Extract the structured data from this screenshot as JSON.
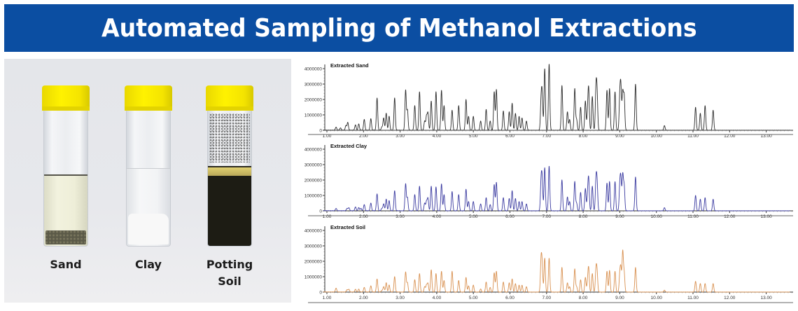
{
  "banner": {
    "title": "Automated Sampling of Methanol Extractions",
    "background": "#0b4ea2"
  },
  "photo": {
    "vials": [
      {
        "label_lines": [
          "Sand"
        ],
        "cap_color": "#fff200",
        "sediment_color": "#5b5a48",
        "liquid_color": "#eeeed8"
      },
      {
        "label_lines": [
          "Clay"
        ],
        "cap_color": "#fff200",
        "sediment_color": "#f6f6f6",
        "liquid_color": "#eef0f2"
      },
      {
        "label_lines": [
          "Potting",
          "Soil"
        ],
        "cap_color": "#fff200",
        "sediment_color": "#1d1c14",
        "liquid_color": "#d8c878"
      }
    ]
  },
  "chart_data": [
    {
      "type": "line",
      "title": "Extracted Sand",
      "color": "#2b2b2b",
      "xlabel": "",
      "ylabel": "",
      "xlim": [
        0.55,
        13.7
      ],
      "ylim": [
        0,
        4000000
      ],
      "x_ticks": [
        "1.00",
        "2.00",
        "3.00",
        "4.00",
        "5.00",
        "6.00",
        "7.00",
        "8.00",
        "9.00",
        "10.00",
        "11.00",
        "12.00",
        "13.00"
      ],
      "y_ticks": [
        "0",
        "1000000",
        "2000000",
        "3000000",
        "4000000"
      ],
      "peaks": [
        [
          1.25,
          200000
        ],
        [
          1.37,
          150000
        ],
        [
          1.52,
          300000
        ],
        [
          1.57,
          500000
        ],
        [
          1.78,
          350000
        ],
        [
          1.87,
          400000
        ],
        [
          2.02,
          700000
        ],
        [
          2.2,
          750000
        ],
        [
          2.37,
          2100000
        ],
        [
          2.5,
          200000
        ],
        [
          2.55,
          800000
        ],
        [
          2.62,
          1100000
        ],
        [
          2.7,
          900000
        ],
        [
          2.85,
          2100000
        ],
        [
          3.15,
          2600000
        ],
        [
          3.2,
          1300000
        ],
        [
          3.4,
          1600000
        ],
        [
          3.53,
          2500000
        ],
        [
          3.67,
          600000
        ],
        [
          3.72,
          900000
        ],
        [
          3.76,
          1100000
        ],
        [
          3.85,
          1900000
        ],
        [
          3.98,
          2500000
        ],
        [
          4.13,
          2600000
        ],
        [
          4.2,
          1600000
        ],
        [
          4.42,
          1300000
        ],
        [
          4.6,
          1600000
        ],
        [
          4.8,
          2000000
        ],
        [
          4.87,
          900000
        ],
        [
          5.0,
          900000
        ],
        [
          5.2,
          600000
        ],
        [
          5.35,
          1350000
        ],
        [
          5.46,
          600000
        ],
        [
          5.57,
          2500000
        ],
        [
          5.63,
          2650000
        ],
        [
          5.82,
          1250000
        ],
        [
          5.98,
          1200000
        ],
        [
          6.06,
          1750000
        ],
        [
          6.15,
          1100000
        ],
        [
          6.25,
          900000
        ],
        [
          6.33,
          800000
        ],
        [
          6.45,
          600000
        ],
        [
          6.85,
          1800000
        ],
        [
          6.88,
          2200000
        ],
        [
          6.95,
          4000000
        ],
        [
          7.07,
          4300000
        ],
        [
          7.42,
          2900000
        ],
        [
          7.57,
          1200000
        ],
        [
          7.63,
          700000
        ],
        [
          7.77,
          2700000
        ],
        [
          7.82,
          700000
        ],
        [
          7.93,
          1500000
        ],
        [
          8.06,
          1900000
        ],
        [
          8.12,
          1000000
        ],
        [
          8.15,
          2600000
        ],
        [
          8.25,
          2200000
        ],
        [
          8.35,
          2600000
        ],
        [
          8.38,
          2200000
        ],
        [
          8.65,
          2600000
        ],
        [
          8.72,
          2700000
        ],
        [
          8.87,
          2500000
        ],
        [
          9.0,
          2000000
        ],
        [
          9.03,
          2600000
        ],
        [
          9.08,
          2400000
        ],
        [
          9.12,
          2200000
        ],
        [
          9.43,
          3000000
        ],
        [
          10.22,
          300000
        ],
        [
          11.07,
          1500000
        ],
        [
          11.2,
          1100000
        ],
        [
          11.33,
          1600000
        ],
        [
          11.55,
          1300000
        ]
      ]
    },
    {
      "type": "line",
      "title": "Extracted Clay",
      "color": "#3a3aa0",
      "xlabel": "",
      "ylabel": "",
      "xlim": [
        0.55,
        13.7
      ],
      "ylim": [
        0,
        4000000
      ],
      "x_ticks": [
        "1.00",
        "2.00",
        "3.00",
        "4.00",
        "5.00",
        "6.00",
        "7.00",
        "8.00",
        "9.00",
        "10.00",
        "11.00",
        "12.00",
        "13.00"
      ],
      "y_ticks": [
        "0",
        "1000000",
        "2000000",
        "3000000",
        "4000000"
      ],
      "peaks": [
        [
          1.25,
          150000
        ],
        [
          1.55,
          150000
        ],
        [
          1.6,
          200000
        ],
        [
          1.78,
          250000
        ],
        [
          1.87,
          200000
        ],
        [
          1.93,
          150000
        ],
        [
          2.02,
          400000
        ],
        [
          2.2,
          500000
        ],
        [
          2.37,
          1100000
        ],
        [
          2.5,
          150000
        ],
        [
          2.55,
          450000
        ],
        [
          2.62,
          750000
        ],
        [
          2.7,
          650000
        ],
        [
          2.85,
          1300000
        ],
        [
          3.15,
          1750000
        ],
        [
          3.2,
          850000
        ],
        [
          3.4,
          1050000
        ],
        [
          3.53,
          1600000
        ],
        [
          3.67,
          500000
        ],
        [
          3.72,
          600000
        ],
        [
          3.76,
          800000
        ],
        [
          3.85,
          1600000
        ],
        [
          3.98,
          1550000
        ],
        [
          4.13,
          1750000
        ],
        [
          4.2,
          1050000
        ],
        [
          4.42,
          1250000
        ],
        [
          4.6,
          1050000
        ],
        [
          4.8,
          1400000
        ],
        [
          4.87,
          600000
        ],
        [
          5.0,
          600000
        ],
        [
          5.2,
          450000
        ],
        [
          5.35,
          850000
        ],
        [
          5.46,
          400000
        ],
        [
          5.57,
          1700000
        ],
        [
          5.63,
          1850000
        ],
        [
          5.82,
          850000
        ],
        [
          5.98,
          800000
        ],
        [
          6.06,
          1300000
        ],
        [
          6.15,
          800000
        ],
        [
          6.25,
          600000
        ],
        [
          6.33,
          600000
        ],
        [
          6.45,
          450000
        ],
        [
          6.85,
          1800000
        ],
        [
          6.88,
          1900000
        ],
        [
          6.95,
          2800000
        ],
        [
          7.07,
          2900000
        ],
        [
          7.42,
          2000000
        ],
        [
          7.57,
          900000
        ],
        [
          7.63,
          600000
        ],
        [
          7.77,
          1900000
        ],
        [
          7.82,
          500000
        ],
        [
          7.93,
          1200000
        ],
        [
          8.06,
          1450000
        ],
        [
          8.12,
          900000
        ],
        [
          8.15,
          2000000
        ],
        [
          8.25,
          1600000
        ],
        [
          8.35,
          1900000
        ],
        [
          8.38,
          1700000
        ],
        [
          8.65,
          1800000
        ],
        [
          8.72,
          1900000
        ],
        [
          8.87,
          1900000
        ],
        [
          9.0,
          1500000
        ],
        [
          9.03,
          1900000
        ],
        [
          9.08,
          2300000
        ],
        [
          9.12,
          1600000
        ],
        [
          9.43,
          2200000
        ],
        [
          10.22,
          200000
        ],
        [
          11.07,
          1000000
        ],
        [
          11.2,
          750000
        ],
        [
          11.33,
          850000
        ],
        [
          11.55,
          750000
        ]
      ]
    },
    {
      "type": "line",
      "title": "Extracted Soil",
      "color": "#d89050",
      "xlabel": "",
      "ylabel": "",
      "xlim": [
        0.55,
        13.7
      ],
      "ylim": [
        0,
        4000000
      ],
      "x_ticks": [
        "1.00",
        "2.00",
        "3.00",
        "4.00",
        "5.00",
        "6.00",
        "7.00",
        "8.00",
        "9.00",
        "10.00",
        "11.00",
        "12.00",
        "13.00"
      ],
      "y_ticks": [
        "0",
        "1000000",
        "2000000",
        "3000000",
        "4000000"
      ],
      "peaks": [
        [
          1.25,
          250000
        ],
        [
          1.55,
          150000
        ],
        [
          1.6,
          180000
        ],
        [
          1.78,
          180000
        ],
        [
          1.87,
          180000
        ],
        [
          2.02,
          300000
        ],
        [
          2.2,
          400000
        ],
        [
          2.37,
          850000
        ],
        [
          2.5,
          100000
        ],
        [
          2.55,
          350000
        ],
        [
          2.62,
          600000
        ],
        [
          2.7,
          450000
        ],
        [
          2.85,
          1000000
        ],
        [
          3.15,
          1300000
        ],
        [
          3.2,
          600000
        ],
        [
          3.4,
          800000
        ],
        [
          3.53,
          1200000
        ],
        [
          3.67,
          350000
        ],
        [
          3.72,
          450000
        ],
        [
          3.76,
          550000
        ],
        [
          3.85,
          1450000
        ],
        [
          3.98,
          1200000
        ],
        [
          4.13,
          1350000
        ],
        [
          4.2,
          750000
        ],
        [
          4.42,
          1350000
        ],
        [
          4.6,
          750000
        ],
        [
          4.8,
          950000
        ],
        [
          4.87,
          400000
        ],
        [
          5.0,
          450000
        ],
        [
          5.2,
          200000
        ],
        [
          5.35,
          650000
        ],
        [
          5.46,
          300000
        ],
        [
          5.57,
          1250000
        ],
        [
          5.63,
          1350000
        ],
        [
          5.82,
          650000
        ],
        [
          5.98,
          600000
        ],
        [
          6.06,
          850000
        ],
        [
          6.15,
          550000
        ],
        [
          6.25,
          450000
        ],
        [
          6.33,
          450000
        ],
        [
          6.45,
          350000
        ],
        [
          6.85,
          2000000
        ],
        [
          6.88,
          1600000
        ],
        [
          6.95,
          2200000
        ],
        [
          7.07,
          2200000
        ],
        [
          7.42,
          1600000
        ],
        [
          7.57,
          600000
        ],
        [
          7.63,
          350000
        ],
        [
          7.77,
          1500000
        ],
        [
          7.82,
          350000
        ],
        [
          7.93,
          800000
        ],
        [
          8.06,
          950000
        ],
        [
          8.12,
          600000
        ],
        [
          8.15,
          1500000
        ],
        [
          8.25,
          1200000
        ],
        [
          8.35,
          1400000
        ],
        [
          8.38,
          1200000
        ],
        [
          8.65,
          1350000
        ],
        [
          8.72,
          1400000
        ],
        [
          8.87,
          1350000
        ],
        [
          9.0,
          1050000
        ],
        [
          9.03,
          1400000
        ],
        [
          9.08,
          2600000
        ],
        [
          9.12,
          1200000
        ],
        [
          9.43,
          1600000
        ],
        [
          10.22,
          120000
        ],
        [
          11.07,
          700000
        ],
        [
          11.2,
          550000
        ],
        [
          11.33,
          550000
        ],
        [
          11.55,
          550000
        ]
      ]
    }
  ]
}
